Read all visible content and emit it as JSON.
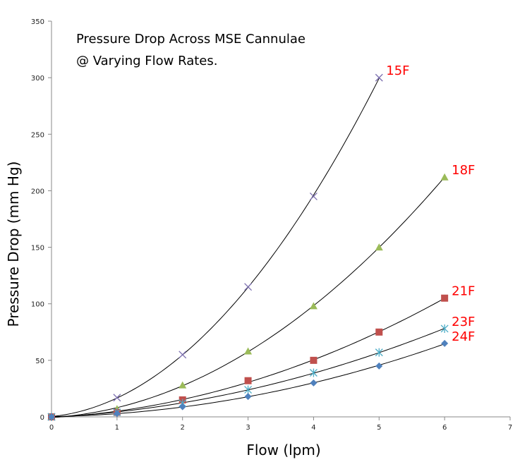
{
  "chart_data": {
    "type": "scatter",
    "title_lines": [
      "Pressure Drop Across MSE Cannulae",
      "@ Varying Flow Rates."
    ],
    "xlabel": "Flow (lpm)",
    "ylabel": "Pressure Drop (mm Hg)",
    "xlim": [
      0,
      7
    ],
    "ylim": [
      0,
      350
    ],
    "x_ticks": [
      0,
      1,
      2,
      3,
      4,
      5,
      6,
      7
    ],
    "y_ticks": [
      0,
      50,
      100,
      150,
      200,
      250,
      300,
      350
    ],
    "grid": false,
    "legend": "direct-labels",
    "trendline_color": "#000000",
    "label_color": "#ff0000",
    "series": [
      {
        "name": "15F",
        "marker": "x",
        "color": "#7c6fb0",
        "x": [
          0,
          1,
          2,
          3,
          4,
          5
        ],
        "y": [
          0,
          17,
          55,
          115,
          195,
          300
        ]
      },
      {
        "name": "18F",
        "marker": "triangle",
        "color": "#9bbb59",
        "x": [
          0,
          1,
          2,
          3,
          4,
          5,
          6
        ],
        "y": [
          0,
          7,
          28,
          58,
          98,
          150,
          212
        ]
      },
      {
        "name": "21F",
        "marker": "square",
        "color": "#c0504d",
        "x": [
          0,
          1,
          2,
          3,
          4,
          5,
          6
        ],
        "y": [
          0,
          4,
          15,
          32,
          50,
          75,
          105
        ]
      },
      {
        "name": "23F",
        "marker": "star",
        "color": "#4bacc6",
        "x": [
          0,
          1,
          2,
          3,
          4,
          5,
          6
        ],
        "y": [
          0,
          4,
          12,
          24,
          39,
          57,
          78
        ]
      },
      {
        "name": "24F",
        "marker": "diamond",
        "color": "#4f81bd",
        "x": [
          0,
          1,
          2,
          3,
          4,
          5,
          6
        ],
        "y": [
          0,
          3,
          9,
          18,
          30,
          45,
          65
        ]
      }
    ]
  }
}
